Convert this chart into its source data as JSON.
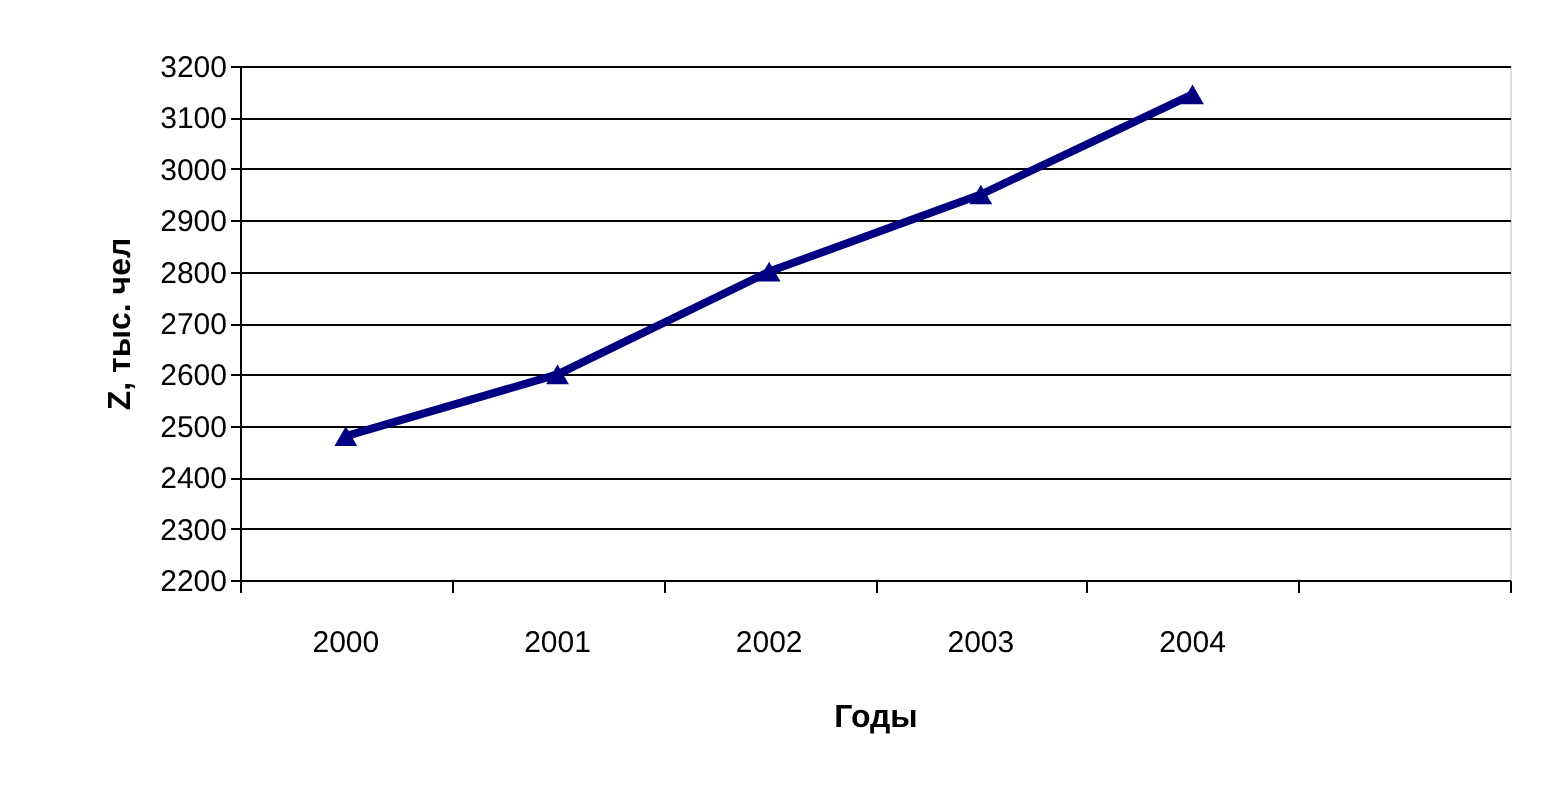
{
  "chart_data": {
    "type": "line",
    "xlabel": "Годы",
    "ylabel": "Z, тыс. чел",
    "categories": [
      "2000",
      "2001",
      "2002",
      "2003",
      "2004",
      null
    ],
    "series": [
      {
        "color": "#000080",
        "values": [
          2480,
          2600,
          2800,
          2950,
          3145,
          null
        ]
      }
    ],
    "ylim": [
      2200,
      3200
    ],
    "yticks": [
      2200,
      2300,
      2400,
      2500,
      2600,
      2700,
      2800,
      2900,
      3000,
      3100,
      3200
    ],
    "grid": "y",
    "marker": "triangle",
    "line_style": "solid"
  }
}
